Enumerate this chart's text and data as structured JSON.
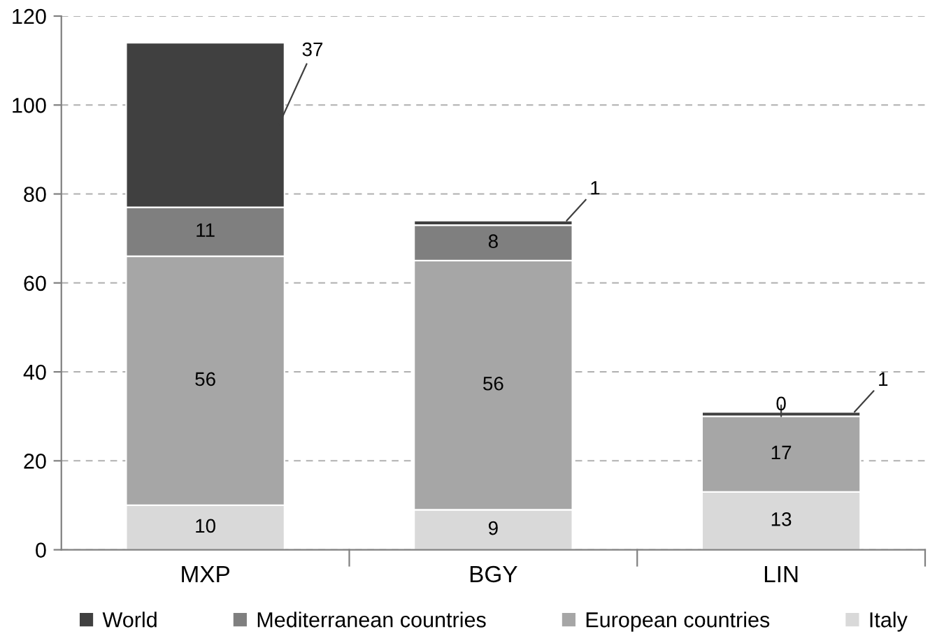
{
  "chart_data": {
    "type": "bar",
    "stacked": true,
    "categories": [
      "MXP",
      "BGY",
      "LIN"
    ],
    "series": [
      {
        "name": "Italy",
        "color": "#d9d9d9",
        "values": [
          10,
          9,
          13
        ]
      },
      {
        "name": "European countries",
        "color": "#a6a6a6",
        "values": [
          56,
          56,
          17
        ]
      },
      {
        "name": "Mediterranean countries",
        "color": "#7f7f7f",
        "values": [
          11,
          8,
          0
        ]
      },
      {
        "name": "World",
        "color": "#404040",
        "values": [
          37,
          1,
          1
        ]
      }
    ],
    "ylim": [
      0,
      120
    ],
    "yticks": [
      0,
      20,
      40,
      60,
      80,
      100,
      120
    ],
    "grid": "y",
    "legend": "bottom",
    "data_labels": true
  }
}
